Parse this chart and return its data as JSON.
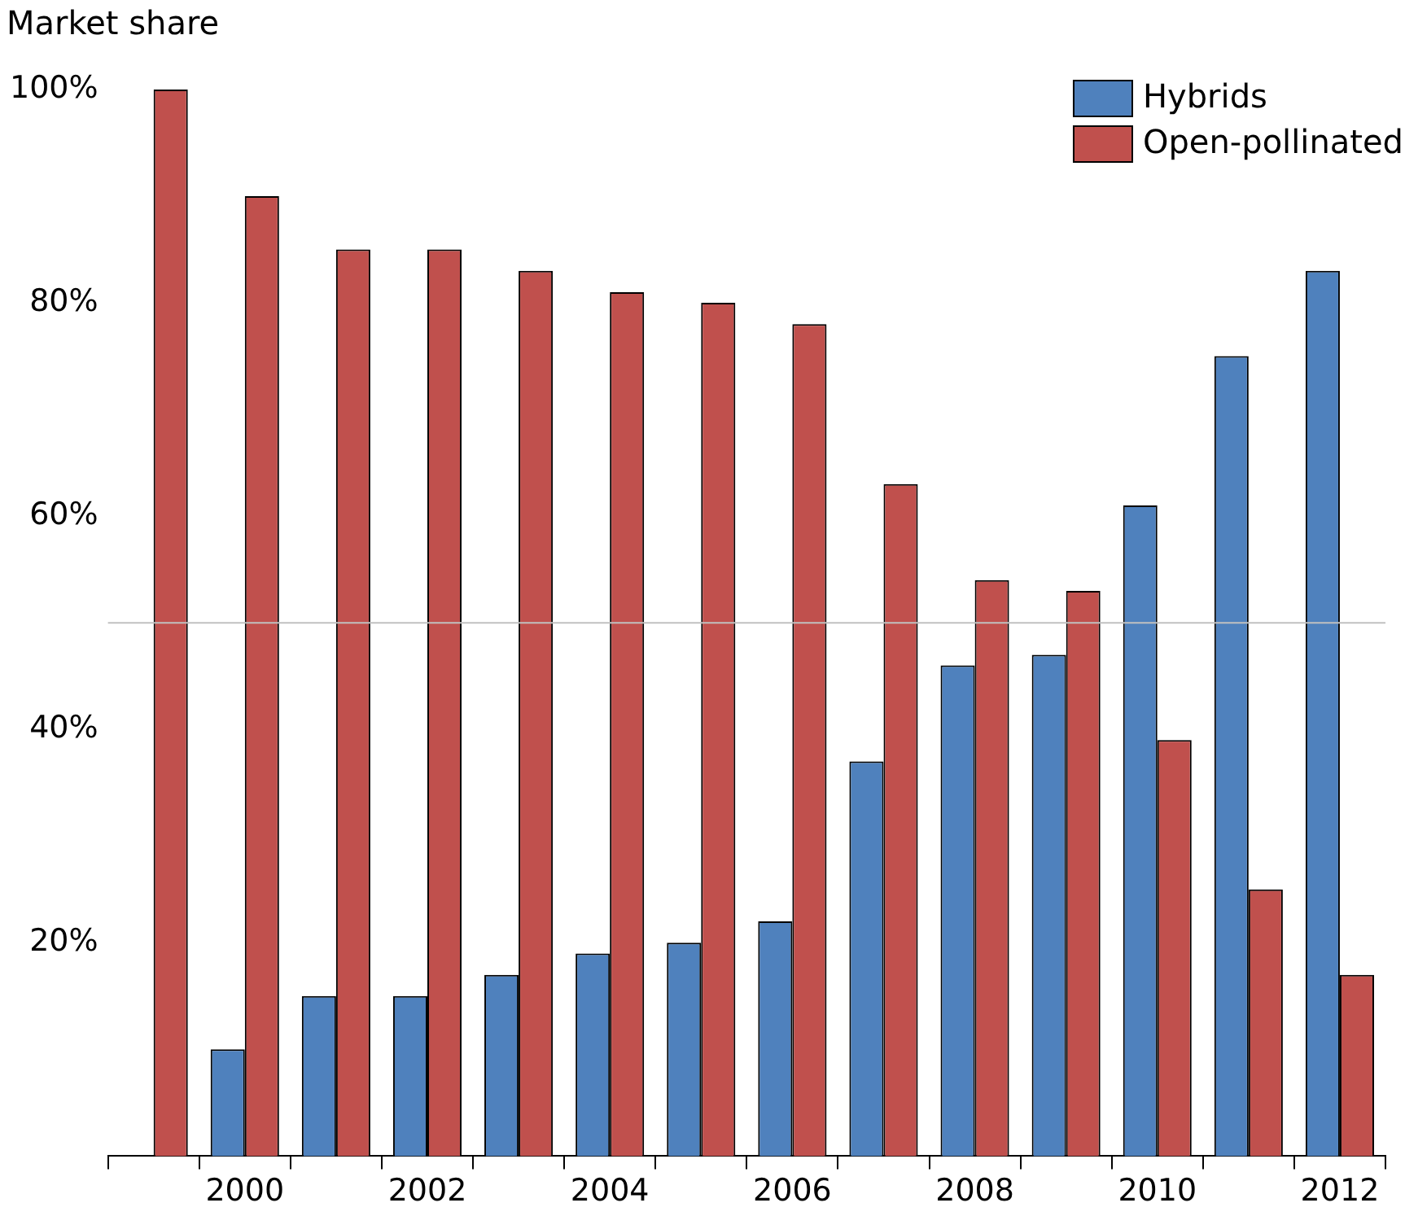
{
  "chart_data": {
    "type": "bar",
    "ylabel": "Market share",
    "categories": [
      null,
      "2000",
      null,
      "2002",
      null,
      "2004",
      null,
      "2006",
      null,
      "2008",
      null,
      "2010",
      null,
      "2012"
    ],
    "series": [
      {
        "name": "Hybrids",
        "color": "#4f81bd",
        "values": [
          null,
          10,
          15,
          15,
          17,
          19,
          20,
          22,
          37,
          46,
          47,
          61,
          75,
          83
        ]
      },
      {
        "name": "Open-pollinated",
        "color": "#c0504d",
        "values": [
          100,
          90,
          85,
          85,
          83,
          81,
          80,
          78,
          63,
          54,
          53,
          39,
          25,
          17
        ]
      }
    ],
    "ylim": [
      0,
      100
    ],
    "yticks": [
      {
        "value": 0,
        "label": null
      },
      {
        "value": 20,
        "label": "20%"
      },
      {
        "value": 40,
        "label": "40%"
      },
      {
        "value": 60,
        "label": "60%"
      },
      {
        "value": 80,
        "label": "80%"
      },
      {
        "value": 100,
        "label": "100%"
      }
    ],
    "ref_lines": [
      {
        "axis": "y",
        "value": 50,
        "color": "#c0c0c0"
      }
    ],
    "grid": false,
    "legend": "top right"
  }
}
